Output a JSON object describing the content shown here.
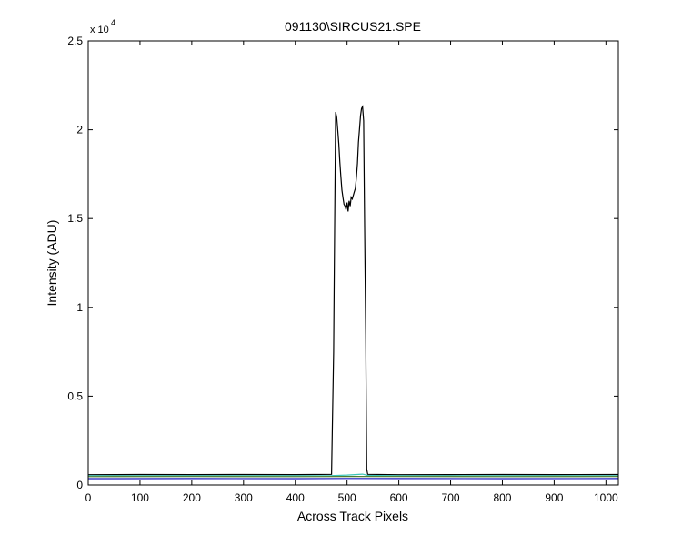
{
  "chart_data": {
    "type": "line",
    "title": "091130\\SIRCUS21.SPE",
    "xlabel": "Across Track Pixels",
    "ylabel": "Intensity (ADU)",
    "y_exponent_label": "x 10",
    "y_exponent_power": "4",
    "xlim": [
      0,
      1024
    ],
    "ylim": [
      0,
      25000
    ],
    "grid": false,
    "xticks": [
      0,
      100,
      200,
      300,
      400,
      500,
      600,
      700,
      800,
      900,
      1000
    ],
    "yticks": [
      0,
      5000,
      10000,
      15000,
      20000,
      25000
    ],
    "ytick_labels": [
      "0",
      "0.5",
      "1",
      "1.5",
      "2",
      "2.5"
    ],
    "series": [
      {
        "color": "#000000",
        "x": [
          0,
          100,
          200,
          300,
          400,
          470,
          474,
          476,
          478,
          480,
          482,
          484,
          486,
          488,
          490,
          492,
          494,
          496,
          498,
          500,
          502,
          504,
          506,
          508,
          510,
          512,
          514,
          516,
          518,
          520,
          522,
          524,
          526,
          528,
          530,
          532,
          534,
          536,
          538,
          540,
          600,
          700,
          800,
          900,
          1024
        ],
        "y": [
          580,
          590,
          585,
          590,
          585,
          600,
          7500,
          14500,
          21000,
          20700,
          20000,
          19200,
          18200,
          17400,
          16600,
          16200,
          15800,
          15700,
          15500,
          15900,
          15400,
          16000,
          15700,
          16200,
          16100,
          16300,
          16500,
          16700,
          17300,
          18100,
          19300,
          20000,
          20800,
          21200,
          21300,
          20500,
          14500,
          8500,
          900,
          600,
          580,
          585,
          590,
          585,
          590
        ]
      },
      {
        "color": "#3cc5b8",
        "x": [
          0,
          100,
          200,
          300,
          400,
          470,
          500,
          530,
          540,
          600,
          700,
          800,
          900,
          1024
        ],
        "y": [
          520,
          525,
          520,
          525,
          520,
          530,
          560,
          610,
          540,
          525,
          520,
          525,
          520,
          525
        ]
      },
      {
        "color": "#4a7a30",
        "x": [
          0,
          200,
          400,
          500,
          600,
          800,
          1024
        ],
        "y": [
          470,
          475,
          470,
          480,
          475,
          470,
          475
        ]
      },
      {
        "color": "#1a1ac0",
        "x": [
          0,
          200,
          400,
          500,
          600,
          800,
          1024
        ],
        "y": [
          360,
          365,
          360,
          370,
          365,
          360,
          365
        ]
      }
    ]
  }
}
